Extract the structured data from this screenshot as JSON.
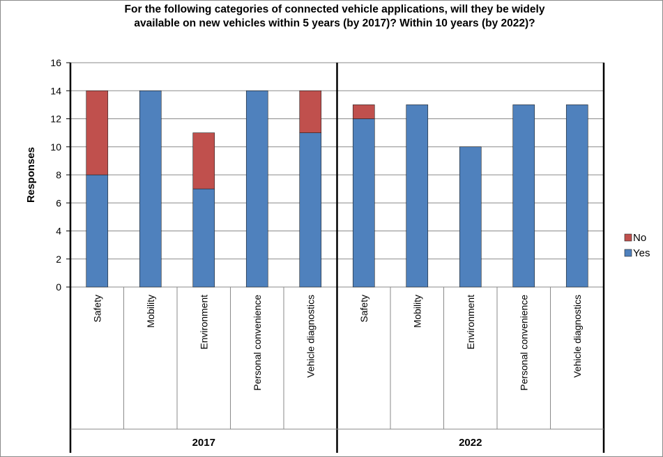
{
  "chart_data": {
    "type": "bar",
    "stacked": true,
    "title_lines": [
      "For the following categories of connected vehicle applications, will they be widely",
      "available on new vehicles within 5 years (by 2017)? Within 10 years (by 2022)?"
    ],
    "ylabel": "Responses",
    "ylim": [
      0,
      16
    ],
    "yticks": [
      0,
      2,
      4,
      6,
      8,
      10,
      12,
      14,
      16
    ],
    "grid": true,
    "legend_position": "right",
    "groups": [
      {
        "label": "2017",
        "categories": [
          "Safety",
          "Mobility",
          "Environment",
          "Personal convenience",
          "Vehicle diagnostics"
        ],
        "yes": [
          8,
          14,
          7,
          14,
          11
        ],
        "no": [
          6,
          0,
          4,
          0,
          3
        ]
      },
      {
        "label": "2022",
        "categories": [
          "Safety",
          "Mobility",
          "Environment",
          "Personal convenience",
          "Vehicle diagnostics"
        ],
        "yes": [
          12,
          13,
          10,
          13,
          13
        ],
        "no": [
          1,
          0,
          0,
          0,
          0
        ]
      }
    ],
    "series": [
      {
        "name": "No",
        "color": "#c0504d"
      },
      {
        "name": "Yes",
        "color": "#4f81bd"
      }
    ]
  }
}
